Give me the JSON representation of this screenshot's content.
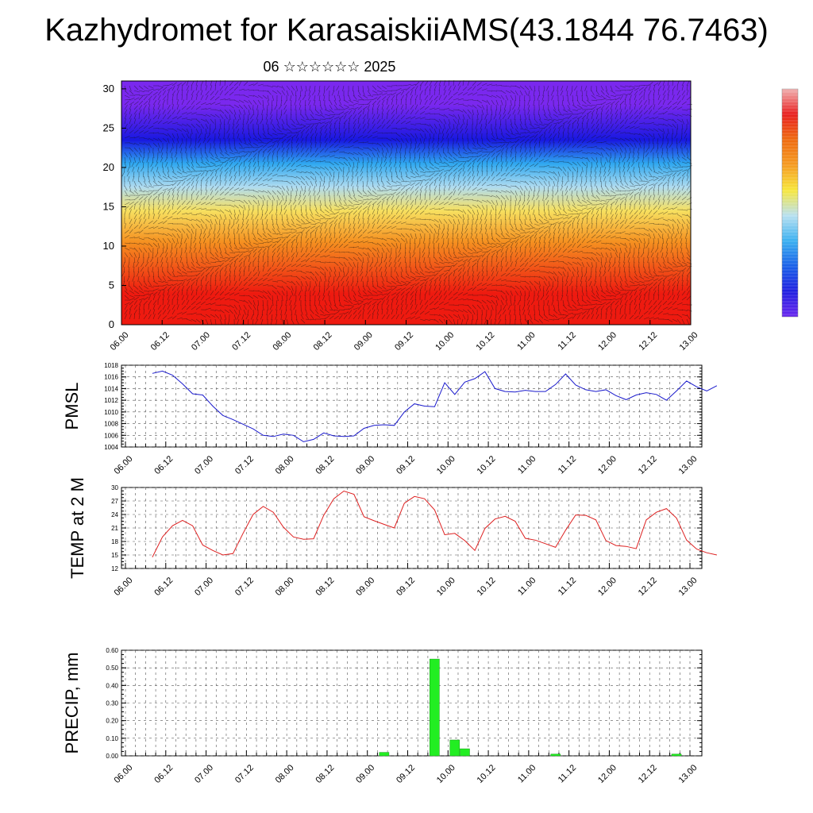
{
  "title": "Kazhydromet for KarasaiskiiAMS(43.1844 76.7463)",
  "subtitle": "06 ☆☆☆☆☆☆ 2025",
  "time_ticks": [
    "06.00",
    "06.12",
    "07.00",
    "07.12",
    "08.00",
    "08.12",
    "09.00",
    "09.12",
    "10.00",
    "10.12",
    "11.00",
    "11.12",
    "12.00",
    "12.12",
    "13.00"
  ],
  "colors": {
    "pmsl_line": "#1a1acc",
    "temp_line": "#dd2020",
    "precip_bar": "#22ee22",
    "grid": "#555555"
  },
  "chart_data": [
    {
      "type": "heatmap",
      "name": "",
      "ylim": [
        0,
        31
      ],
      "yticks": [
        "0",
        "5",
        "10",
        "15",
        "20",
        "25",
        "30"
      ],
      "x_range": [
        "06.00",
        "13.00"
      ],
      "color_bands_by_level": [
        {
          "from": 0,
          "to": 8,
          "color": "#ee1a10"
        },
        {
          "from": 8,
          "to": 13,
          "color": "#f59020"
        },
        {
          "from": 13,
          "to": 16,
          "color": "#f7e060"
        },
        {
          "from": 16,
          "to": 19,
          "color": "#b0dcf0"
        },
        {
          "from": 19,
          "to": 22,
          "color": "#2fa8f0"
        },
        {
          "from": 22,
          "to": 25,
          "color": "#1818e0"
        },
        {
          "from": 25,
          "to": 31,
          "color": "#7a28ee"
        }
      ],
      "overlay": "wind barbs",
      "colorbar": {
        "placement": "right",
        "colors": [
          "#f0b0b0",
          "#e82020",
          "#ee6a10",
          "#f59a20",
          "#f7e63c",
          "#b8e0f0",
          "#3ab0f0",
          "#1a60e8",
          "#2020e0",
          "#6a28ee"
        ]
      }
    },
    {
      "type": "line",
      "ylabel": "PMSL",
      "ylim": [
        1004,
        1018
      ],
      "yticks": [
        "1004",
        "1006",
        "1008",
        "1010",
        "1012",
        "1014",
        "1016",
        "1018"
      ],
      "x_step_hours": 3,
      "values": [
        1016.6,
        1017.0,
        1016.3,
        1014.8,
        1013.1,
        1012.9,
        1011.0,
        1009.4,
        1008.7,
        1007.9,
        1007.1,
        1006.0,
        1005.8,
        1006.2,
        1006.0,
        1004.9,
        1005.3,
        1006.4,
        1005.9,
        1005.8,
        1005.9,
        1007.2,
        1007.7,
        1007.8,
        1007.7,
        1010.0,
        1011.4,
        1011.0,
        1010.9,
        1015.0,
        1013.0,
        1015.1,
        1015.7,
        1016.9,
        1014.0,
        1013.5,
        1013.4,
        1013.7,
        1013.5,
        1013.5,
        1014.7,
        1016.5,
        1014.6,
        1013.8,
        1013.5,
        1013.8,
        1012.8,
        1012.1,
        1012.9,
        1013.3,
        1013.0,
        1012.0,
        1013.6,
        1015.3,
        1014.3,
        1013.6,
        1014.5
      ]
    },
    {
      "type": "line",
      "ylabel": "TEMP at 2 M",
      "ylim": [
        12,
        30
      ],
      "yticks": [
        "12",
        "15",
        "18",
        "21",
        "24",
        "27",
        "30"
      ],
      "x_step_hours": 3,
      "values": [
        14.5,
        19.0,
        21.5,
        22.7,
        21.5,
        17.2,
        16.0,
        15.0,
        15.3,
        19.8,
        24.0,
        25.8,
        24.5,
        21.2,
        19.0,
        18.5,
        18.6,
        23.8,
        27.5,
        29.2,
        28.5,
        23.5,
        22.6,
        21.8,
        21.0,
        26.5,
        28.0,
        27.5,
        25.0,
        19.5,
        19.8,
        18.2,
        16.0,
        20.9,
        23.0,
        23.6,
        22.5,
        18.7,
        18.3,
        17.5,
        16.7,
        20.5,
        23.9,
        23.8,
        22.8,
        18.2,
        17.1,
        16.9,
        16.4,
        22.8,
        24.5,
        25.3,
        23.2,
        18.3,
        16.3,
        15.5,
        15.0
      ]
    },
    {
      "type": "bar",
      "ylabel": "PRECIP, mm",
      "ylim": [
        0,
        0.6
      ],
      "yticks": [
        "0.00",
        "0.10",
        "0.20",
        "0.30",
        "0.40",
        "0.50",
        "0.60"
      ],
      "bar_step_hours": 3,
      "values": [
        0,
        0,
        0,
        0,
        0,
        0,
        0,
        0,
        0,
        0,
        0,
        0,
        0,
        0,
        0,
        0,
        0,
        0,
        0,
        0,
        0,
        0,
        0,
        0.02,
        0,
        0,
        0,
        0,
        0.55,
        0,
        0.09,
        0.04,
        0,
        0,
        0,
        0,
        0,
        0,
        0,
        0,
        0.01,
        0,
        0,
        0,
        0,
        0,
        0,
        0,
        0,
        0,
        0,
        0,
        0.01,
        0,
        0,
        0
      ]
    }
  ]
}
